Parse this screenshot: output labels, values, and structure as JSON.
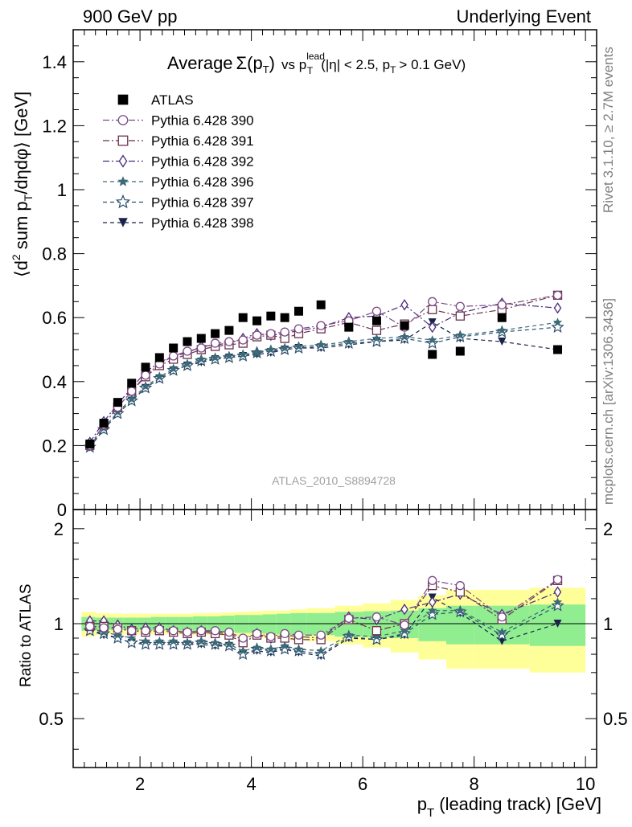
{
  "header": {
    "left": "900 GeV pp",
    "right": "Underlying Event"
  },
  "side_labels": {
    "rivet": "Rivet 3.1.10, ≥ 2.7M events",
    "mcplots": "mcplots.cern.ch [arXiv:1306.3436]"
  },
  "watermark": "ATLAS_2010_S8894728",
  "colors": {
    "atlas": "#000000",
    "p390": "#7a4a86",
    "p391": "#6b2f4a",
    "p392": "#4b2a7b",
    "p396": "#3d6a78",
    "p397": "#2c4f6e",
    "p398": "#1a2348",
    "band_stat": "#90ee90",
    "band_total": "#ffff99"
  },
  "chart_data": [
    {
      "type": "scatter",
      "panel": "main",
      "title": "Average Σ(pT) vs pT lead (|η| < 2.5, pT > 0.1 GeV)",
      "title_parts": {
        "average": "Average",
        "sigma": "Σ(p",
        "t_sub": "T",
        "close": ")",
        "vs": "vs p",
        "lead_sup": "lead",
        "cuts_a": "(|η| < 2.5, p",
        "cuts_b": "> 0.1 GeV)"
      },
      "ylabel": "⟨d² sum pT/dηdφ⟩ [GeV]",
      "ylabel_parts": {
        "a": "⟨d",
        "two": "2",
        "b": " sum p",
        "t": "T",
        "c": "/dηdφ⟩ [GeV]"
      },
      "ylim": [
        0,
        1.5
      ],
      "yticks": [
        "0",
        "0.2",
        "0.4",
        "0.6",
        "0.8",
        "1",
        "1.2",
        "1.4"
      ],
      "yticks_values": [
        0,
        0.2,
        0.4,
        0.6,
        0.8,
        1,
        1.2,
        1.4
      ],
      "xlim": [
        0.8,
        10.2
      ],
      "legend_placement": "top-left",
      "series": [
        {
          "name": "ATLAS",
          "key": "atlas",
          "marker": "square-filled",
          "line": "none",
          "x": [
            1.1,
            1.35,
            1.6,
            1.85,
            2.1,
            2.35,
            2.6,
            2.85,
            3.1,
            3.35,
            3.6,
            3.85,
            4.1,
            4.35,
            4.6,
            4.85,
            5.25,
            5.75,
            6.25,
            6.75,
            7.25,
            7.75,
            8.5,
            9.5
          ],
          "y": [
            0.205,
            0.27,
            0.335,
            0.395,
            0.445,
            0.475,
            0.505,
            0.525,
            0.535,
            0.55,
            0.56,
            0.6,
            0.59,
            0.605,
            0.6,
            0.62,
            0.64,
            0.57,
            0.59,
            0.575,
            0.485,
            0.495,
            0.6,
            0.5
          ]
        },
        {
          "name": "Pythia 6.428 390",
          "key": "p390",
          "marker": "circle-open",
          "line": "dashdot",
          "x": [
            1.1,
            1.35,
            1.6,
            1.85,
            2.1,
            2.35,
            2.6,
            2.85,
            3.1,
            3.35,
            3.6,
            3.85,
            4.1,
            4.35,
            4.6,
            4.85,
            5.25,
            5.75,
            6.25,
            6.75,
            7.25,
            7.75,
            8.5,
            9.5
          ],
          "y": [
            0.2,
            0.265,
            0.32,
            0.37,
            0.42,
            0.455,
            0.48,
            0.495,
            0.505,
            0.52,
            0.525,
            0.53,
            0.545,
            0.55,
            0.555,
            0.565,
            0.575,
            0.59,
            0.62,
            0.57,
            0.65,
            0.635,
            0.64,
            0.67
          ]
        },
        {
          "name": "Pythia 6.428 391",
          "key": "p391",
          "marker": "square-open",
          "line": "dashdot",
          "x": [
            1.1,
            1.35,
            1.6,
            1.85,
            2.1,
            2.35,
            2.6,
            2.85,
            3.1,
            3.35,
            3.6,
            3.85,
            4.1,
            4.35,
            4.6,
            4.85,
            5.25,
            5.75,
            6.25,
            6.75,
            7.25,
            7.75,
            8.5,
            9.5
          ],
          "y": [
            0.2,
            0.265,
            0.32,
            0.37,
            0.415,
            0.45,
            0.47,
            0.485,
            0.5,
            0.51,
            0.515,
            0.52,
            0.54,
            0.545,
            0.535,
            0.55,
            0.565,
            0.585,
            0.56,
            0.58,
            0.625,
            0.605,
            0.625,
            0.67
          ]
        },
        {
          "name": "Pythia 6.428 392",
          "key": "p392",
          "marker": "diamond-open",
          "line": "dashdot",
          "x": [
            1.1,
            1.35,
            1.6,
            1.85,
            2.1,
            2.35,
            2.6,
            2.85,
            3.1,
            3.35,
            3.6,
            3.85,
            4.1,
            4.35,
            4.6,
            4.85,
            5.25,
            5.75,
            6.25,
            6.75,
            7.25,
            7.75,
            8.5,
            9.5
          ],
          "y": [
            0.21,
            0.275,
            0.33,
            0.38,
            0.43,
            0.46,
            0.48,
            0.49,
            0.51,
            0.515,
            0.52,
            0.535,
            0.55,
            0.545,
            0.55,
            0.56,
            0.57,
            0.6,
            0.605,
            0.64,
            0.57,
            0.615,
            0.645,
            0.63
          ]
        },
        {
          "name": "Pythia 6.428 396",
          "key": "p396",
          "marker": "star-filled",
          "line": "dashed",
          "x": [
            1.1,
            1.35,
            1.6,
            1.85,
            2.1,
            2.35,
            2.6,
            2.85,
            3.1,
            3.35,
            3.6,
            3.85,
            4.1,
            4.35,
            4.6,
            4.85,
            5.25,
            5.75,
            6.25,
            6.75,
            7.25,
            7.75,
            8.5,
            9.5
          ],
          "y": [
            0.2,
            0.255,
            0.305,
            0.345,
            0.385,
            0.415,
            0.44,
            0.455,
            0.47,
            0.475,
            0.48,
            0.485,
            0.49,
            0.5,
            0.505,
            0.51,
            0.515,
            0.525,
            0.535,
            0.54,
            0.53,
            0.545,
            0.56,
            0.585
          ]
        },
        {
          "name": "Pythia 6.428 397",
          "key": "p397",
          "marker": "star-open",
          "line": "dashed",
          "x": [
            1.1,
            1.35,
            1.6,
            1.85,
            2.1,
            2.35,
            2.6,
            2.85,
            3.1,
            3.35,
            3.6,
            3.85,
            4.1,
            4.35,
            4.6,
            4.85,
            5.25,
            5.75,
            6.25,
            6.75,
            7.25,
            7.75,
            8.5,
            9.5
          ],
          "y": [
            0.195,
            0.25,
            0.3,
            0.34,
            0.38,
            0.41,
            0.435,
            0.45,
            0.465,
            0.47,
            0.475,
            0.48,
            0.49,
            0.495,
            0.5,
            0.505,
            0.51,
            0.52,
            0.525,
            0.535,
            0.52,
            0.54,
            0.555,
            0.57
          ]
        },
        {
          "name": "Pythia 6.428 398",
          "key": "p398",
          "marker": "triangle-down-filled",
          "line": "dashed",
          "x": [
            1.1,
            1.35,
            1.6,
            1.85,
            2.1,
            2.35,
            2.6,
            2.85,
            3.1,
            3.35,
            3.6,
            3.85,
            4.1,
            4.35,
            4.6,
            4.85,
            5.25,
            5.75,
            6.25,
            6.75,
            7.25,
            7.75,
            8.5,
            9.5
          ],
          "y": [
            0.195,
            0.25,
            0.3,
            0.34,
            0.38,
            0.41,
            0.435,
            0.45,
            0.46,
            0.47,
            0.475,
            0.48,
            0.485,
            0.49,
            0.5,
            0.505,
            0.505,
            0.515,
            0.525,
            0.53,
            0.585,
            0.535,
            0.525,
            0.5
          ]
        }
      ]
    },
    {
      "type": "line",
      "panel": "ratio",
      "ylabel": "Ratio to ATLAS",
      "xlabel": "pT (leading track) [GeV]",
      "xlabel_parts": {
        "p": "p",
        "t": "T",
        "rest": " (leading track) [GeV]"
      },
      "ylim": [
        0.35,
        2.3
      ],
      "log_scale_y": true,
      "yticks": [
        "0.5",
        "1",
        "2"
      ],
      "yticks_values": [
        0.5,
        1,
        2
      ],
      "xlim": [
        0.8,
        10.2
      ],
      "xticks": [
        "2",
        "4",
        "6",
        "8",
        "10"
      ],
      "xticks_values": [
        2,
        4,
        6,
        8,
        10
      ],
      "band_edges": [
        0.95,
        1.2,
        1.45,
        1.7,
        1.95,
        2.2,
        2.45,
        2.7,
        2.95,
        3.2,
        3.45,
        3.7,
        3.95,
        4.2,
        4.45,
        4.7,
        5.0,
        5.5,
        6.0,
        6.5,
        7.0,
        7.5,
        8.0,
        9.0,
        10.0
      ],
      "band_total": [
        0.09,
        0.08,
        0.075,
        0.075,
        0.075,
        0.075,
        0.075,
        0.075,
        0.08,
        0.08,
        0.085,
        0.09,
        0.095,
        0.1,
        0.1,
        0.11,
        0.12,
        0.14,
        0.16,
        0.19,
        0.23,
        0.28,
        0.28,
        0.3
      ],
      "band_stat": [
        0.05,
        0.045,
        0.045,
        0.045,
        0.045,
        0.05,
        0.05,
        0.05,
        0.055,
        0.055,
        0.06,
        0.065,
        0.065,
        0.07,
        0.075,
        0.08,
        0.08,
        0.09,
        0.095,
        0.1,
        0.12,
        0.14,
        0.14,
        0.15
      ],
      "series": [
        {
          "name": "Pythia 6.428 390",
          "key": "p390",
          "marker": "circle-open",
          "line": "dashdot",
          "y": [
            0.98,
            0.97,
            0.96,
            0.95,
            0.95,
            0.96,
            0.95,
            0.94,
            0.95,
            0.95,
            0.94,
            0.9,
            0.93,
            0.91,
            0.93,
            0.92,
            0.92,
            1.04,
            1.05,
            0.99,
            1.37,
            1.32,
            1.05,
            1.38
          ]
        },
        {
          "name": "Pythia 6.428 391",
          "key": "p391",
          "marker": "square-open",
          "line": "dashdot",
          "y": [
            0.98,
            0.98,
            0.97,
            0.95,
            0.94,
            0.95,
            0.94,
            0.93,
            0.94,
            0.93,
            0.92,
            0.87,
            0.92,
            0.9,
            0.9,
            0.89,
            0.89,
            1.03,
            0.95,
            1.0,
            1.32,
            1.26,
            1.03,
            1.37
          ]
        },
        {
          "name": "Pythia 6.428 392",
          "key": "p392",
          "marker": "diamond-open",
          "line": "dashdot",
          "y": [
            1.02,
            1.02,
            0.99,
            0.96,
            0.97,
            0.97,
            0.95,
            0.94,
            0.95,
            0.94,
            0.93,
            0.89,
            0.93,
            0.9,
            0.92,
            0.91,
            0.9,
            1.05,
            1.03,
            1.11,
            1.17,
            1.24,
            1.07,
            1.26
          ]
        },
        {
          "name": "Pythia 6.428 396",
          "key": "p396",
          "marker": "star-filled",
          "line": "dashed",
          "y": [
            0.97,
            0.94,
            0.92,
            0.9,
            0.88,
            0.88,
            0.88,
            0.87,
            0.88,
            0.87,
            0.86,
            0.82,
            0.84,
            0.83,
            0.85,
            0.83,
            0.82,
            0.92,
            0.91,
            0.95,
            1.1,
            1.1,
            0.94,
            1.17
          ]
        },
        {
          "name": "Pythia 6.428 397",
          "key": "p397",
          "marker": "star-open",
          "line": "dashed",
          "y": [
            0.95,
            0.93,
            0.9,
            0.87,
            0.86,
            0.86,
            0.86,
            0.86,
            0.87,
            0.86,
            0.85,
            0.8,
            0.83,
            0.82,
            0.83,
            0.82,
            0.8,
            0.91,
            0.89,
            0.93,
            1.07,
            1.09,
            0.92,
            1.14
          ]
        },
        {
          "name": "Pythia 6.428 398",
          "key": "p398",
          "marker": "triangle-down-filled",
          "line": "dashed",
          "y": [
            0.95,
            0.92,
            0.9,
            0.87,
            0.86,
            0.86,
            0.86,
            0.86,
            0.86,
            0.85,
            0.85,
            0.8,
            0.82,
            0.81,
            0.83,
            0.81,
            0.79,
            0.9,
            0.89,
            0.92,
            1.21,
            1.08,
            0.88,
            1.0
          ]
        }
      ]
    }
  ]
}
